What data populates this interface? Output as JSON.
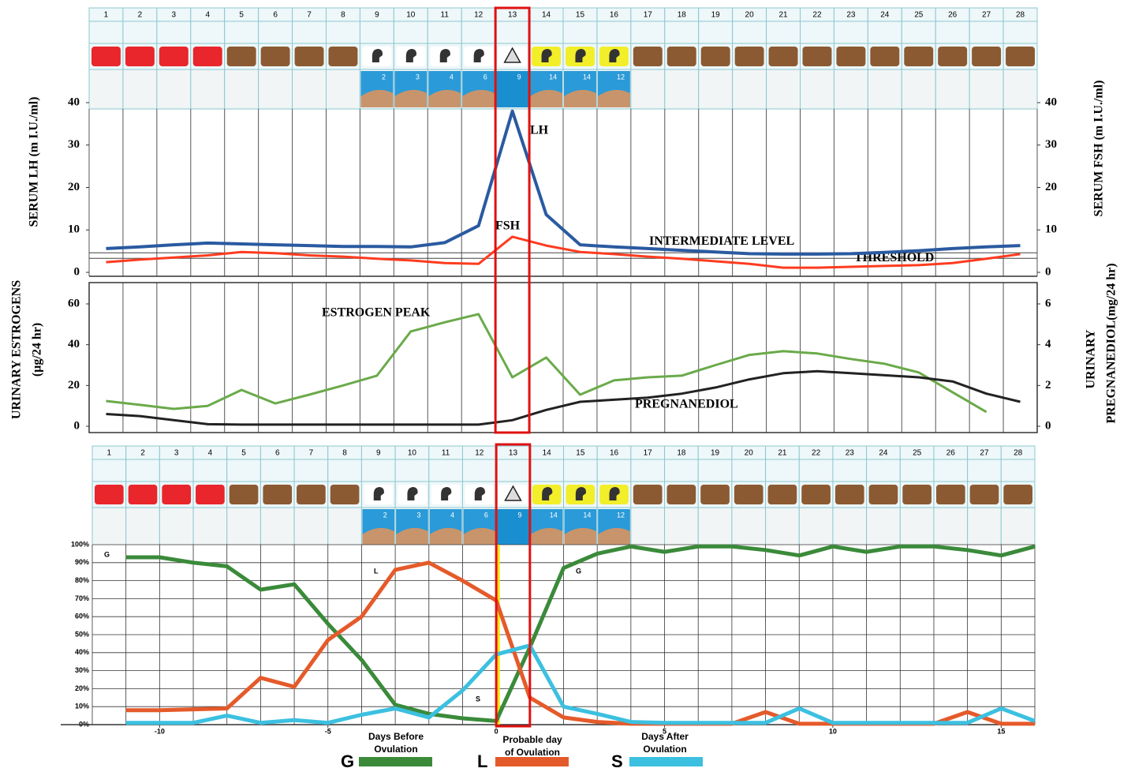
{
  "cycle_header": {
    "phase_colors": [
      "#e8262b",
      "#e8262b",
      "#e8262b",
      "#e8262b",
      "#8b5a32",
      "#8b5a32",
      "#8b5a32",
      "#8b5a32",
      "#ffffff",
      "#ffffff",
      "#ffffff",
      "#ffffff",
      "#ffffff",
      "#f2ee2a",
      "#f2ee2a",
      "#f2ee2a",
      "#8b5a32",
      "#8b5a32",
      "#8b5a32",
      "#8b5a32",
      "#8b5a32",
      "#8b5a32",
      "#8b5a32",
      "#8b5a32",
      "#8b5a32",
      "#8b5a32",
      "#8b5a32",
      "#8b5a32"
    ],
    "icons": [
      null,
      null,
      null,
      null,
      null,
      null,
      null,
      null,
      "head",
      "head",
      "head",
      "head",
      "triangle",
      "head",
      "head",
      "head",
      null,
      null,
      null,
      null,
      null,
      null,
      null,
      null,
      null,
      null,
      null,
      null
    ],
    "image_labels": [
      null,
      null,
      null,
      null,
      null,
      null,
      null,
      null,
      "2",
      "3",
      "4",
      "6",
      "9",
      "14",
      "14",
      "12",
      null,
      null,
      null,
      null,
      null,
      null,
      null,
      null,
      null,
      null,
      null,
      null
    ],
    "highlight": "13"
  },
  "chart_data": [
    {
      "type": "line",
      "categories": [
        "1",
        "2",
        "3",
        "4",
        "5",
        "6",
        "7",
        "8",
        "9",
        "10",
        "11",
        "12",
        "13",
        "14",
        "15",
        "16",
        "17",
        "18",
        "19",
        "20",
        "21",
        "22",
        "23",
        "24",
        "25",
        "26",
        "27",
        "28"
      ],
      "y_label": "SERUM LH (m I.U./ml)",
      "y2_label": "SERUM FSH (m I.U./ml)",
      "ylim": [
        0,
        40
      ],
      "yticks": [
        0,
        10,
        20,
        30,
        40
      ],
      "y2lim": [
        0,
        40
      ],
      "y2ticks": [
        0,
        10,
        20,
        30,
        40
      ],
      "series": [
        {
          "name": "LH",
          "color": "#2a5aa0",
          "values": [
            5.6,
            6,
            6.5,
            6.9,
            6.7,
            6.5,
            6.3,
            6.1,
            6.1,
            6,
            7,
            11,
            38,
            13.6,
            6.5,
            6,
            5.6,
            5.2,
            4.8,
            4.4,
            4.3,
            4.3,
            4.4,
            4.7,
            5.1,
            5.6,
            6,
            6.3
          ]
        },
        {
          "name": "FSH",
          "color": "#ff3b1f",
          "axis": "y2",
          "values": [
            2.4,
            3,
            3.5,
            4,
            4.8,
            4.5,
            4,
            3.7,
            3.2,
            2.8,
            2.2,
            2,
            8.4,
            6.3,
            4.8,
            4.3,
            3.7,
            3.2,
            2.6,
            2,
            1.1,
            1.1,
            1.3,
            1.5,
            1.7,
            2.2,
            3.2,
            4.3
          ]
        }
      ],
      "reference_lines": [
        {
          "label": "INTERMEDIATE LEVEL",
          "value": 4.6
        },
        {
          "label": "THRESHOLD",
          "value": 3.3
        }
      ]
    },
    {
      "type": "line",
      "y_label": [
        "URINARY ESTROGENS",
        "(µg/24 hr)"
      ],
      "y2_label": [
        "URINARY",
        "PREGNANEDIOL(mg/24 hr)"
      ],
      "ylim": [
        0,
        60
      ],
      "yticks": [
        0,
        20,
        40,
        60
      ],
      "y2lim": [
        0,
        6
      ],
      "y2ticks": [
        0,
        2,
        4,
        6
      ],
      "annotations": [
        "ESTROGEN PEAK"
      ],
      "series": [
        {
          "color": "#6aaa4a",
          "values": [
            12.4,
            10.5,
            8.5,
            10,
            17.8,
            11.2,
            15.5,
            20,
            24.8,
            46.5,
            51,
            55,
            24,
            33.7,
            15.5,
            22.5,
            24,
            24.8,
            30,
            35,
            36.8,
            35.7,
            33,
            30.6,
            26.4,
            16.7,
            7,
            null
          ]
        },
        {
          "name": "PREGNANEDIOL",
          "color": "#222222",
          "axis": "y2",
          "values": [
            0.6,
            0.5,
            0.3,
            0.1,
            0.08,
            0.08,
            0.08,
            0.08,
            0.08,
            0.08,
            0.08,
            0.08,
            0.3,
            0.8,
            1.2,
            1.3,
            1.4,
            1.6,
            1.9,
            2.3,
            2.6,
            2.7,
            2.6,
            2.5,
            2.4,
            2.2,
            1.6,
            1.2
          ]
        }
      ]
    },
    {
      "type": "line",
      "x": [
        -11,
        -10,
        -9,
        -8,
        -7,
        -6,
        -5,
        -4,
        -3,
        -2,
        -1,
        0,
        1,
        2,
        3,
        4,
        5,
        6,
        7,
        8,
        9,
        10,
        11,
        12,
        13,
        14,
        15,
        16
      ],
      "xlim": [
        -12,
        16
      ],
      "xticks": [
        -10,
        -5,
        0,
        5,
        10,
        15
      ],
      "ylim": [
        0,
        100
      ],
      "yticks": [
        {
          "value": 0,
          "label": "0%"
        },
        {
          "value": 10,
          "label": "10%"
        },
        {
          "value": 20,
          "label": "20%"
        },
        {
          "value": 30,
          "label": "30%"
        },
        {
          "value": 40,
          "label": "40%"
        },
        {
          "value": 50,
          "label": "50%"
        },
        {
          "value": 60,
          "label": "60%"
        },
        {
          "value": 70,
          "label": "70%"
        },
        {
          "value": 80,
          "label": "80%"
        },
        {
          "value": 90,
          "label": "90%"
        },
        {
          "value": 100,
          "label": "100%"
        }
      ],
      "grid": true,
      "marker": {
        "x": 0,
        "color": "#f2e600"
      },
      "annotations": [
        [
          "Days Before",
          "Ovulation"
        ],
        [
          "Probable day",
          "of Ovulation"
        ],
        [
          "Days After",
          "Ovulation"
        ]
      ],
      "series": [
        {
          "name": "G",
          "color": "#3a8a3a",
          "values": [
            93,
            93,
            90,
            88,
            75,
            78,
            56,
            36,
            11,
            6,
            3.5,
            2,
            43,
            87,
            95,
            99,
            96,
            99,
            99,
            97,
            94,
            99,
            96,
            99,
            99,
            97,
            94,
            99
          ]
        },
        {
          "name": "L",
          "color": "#e55a2a",
          "values": [
            8,
            8,
            8.5,
            9,
            26,
            21,
            47,
            60,
            86,
            90,
            80,
            69,
            15,
            4,
            1.5,
            0.5,
            0.5,
            0.5,
            0.5,
            7,
            0.5,
            0.5,
            0.5,
            0.5,
            0.5,
            7,
            0.5,
            0.5
          ]
        },
        {
          "name": "S",
          "color": "#3cc0e0",
          "values": [
            1,
            1,
            1,
            5,
            1,
            2.5,
            1,
            5.5,
            9,
            4,
            19,
            39,
            44,
            10,
            6,
            1.5,
            1,
            1,
            1,
            1,
            9,
            1,
            1,
            1,
            1,
            1,
            9,
            2
          ]
        }
      ]
    }
  ]
}
